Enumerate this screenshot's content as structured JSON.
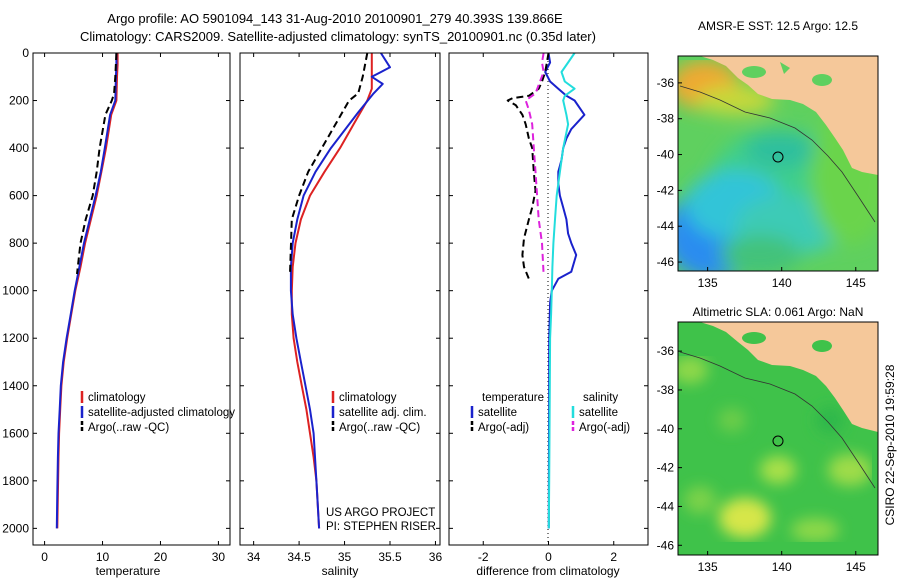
{
  "header": {
    "line1": "Argo profile: AO 5901094_143 31-Aug-2010 20100901_279 40.393S 139.866E",
    "line2": "Climatology: CARS2009. Satellite-adjusted climatology: synTS_20100901.nc (0.35d later)"
  },
  "side_text": "CSIRO 22-Sep-2010 19:59:28",
  "credits": [
    "US ARGO PROJECT",
    "PI: STEPHEN RISER"
  ],
  "colors": {
    "climatology": "#dd2222",
    "satellite": "#1a22cc",
    "argo": "#000000",
    "argo_adj": "#dd22dd",
    "satellite_diff": "#22dddd",
    "land": "#f5c89a"
  },
  "chart_data": [
    {
      "id": "temperature",
      "type": "line",
      "xlabel": "temperature",
      "xlim": [
        -2,
        32
      ],
      "xticks": [
        0,
        10,
        20,
        30
      ],
      "ylim": [
        0,
        2070
      ],
      "yticks": [
        0,
        200,
        400,
        600,
        800,
        1000,
        1200,
        1400,
        1600,
        1800,
        2000
      ],
      "legend": [
        "climatology",
        "satellite-adjusted climatology",
        "Argo(..raw -QC)"
      ],
      "series": [
        {
          "name": "climatology",
          "style": "solid",
          "color": "#dd2222",
          "x": [
            12.6,
            12.6,
            12.5,
            12.4,
            11.5,
            10.6,
            9.8,
            9.0,
            8.0,
            7.0,
            6.2,
            5.3,
            4.6,
            3.9,
            3.3,
            2.9,
            2.7,
            2.5,
            2.4,
            2.3,
            2.2
          ],
          "y": [
            0,
            50,
            100,
            200,
            260,
            400,
            500,
            600,
            700,
            800,
            900,
            1000,
            1100,
            1200,
            1300,
            1400,
            1500,
            1600,
            1700,
            1850,
            2000
          ]
        },
        {
          "name": "satellite-adjusted climatology",
          "style": "solid",
          "color": "#1a22cc",
          "x": [
            12.4,
            12.4,
            12.3,
            12.2,
            11.3,
            10.4,
            9.7,
            8.8,
            7.8,
            6.8,
            6.0,
            5.2,
            4.5,
            3.8,
            3.2,
            2.8,
            2.6,
            2.4,
            2.3,
            2.2,
            2.1
          ],
          "y": [
            0,
            50,
            100,
            200,
            260,
            400,
            500,
            600,
            700,
            800,
            900,
            1000,
            1100,
            1200,
            1300,
            1400,
            1500,
            1600,
            1700,
            1850,
            2000
          ]
        },
        {
          "name": "Argo(..raw -QC)",
          "style": "dashed",
          "color": "#000000",
          "x": [
            12.4,
            12.2,
            12.0,
            11.6,
            10.5,
            9.5,
            9.0,
            8.3,
            7.1,
            6.2,
            5.6
          ],
          "y": [
            0,
            100,
            170,
            200,
            260,
            400,
            500,
            600,
            700,
            800,
            930
          ]
        }
      ]
    },
    {
      "id": "salinity",
      "type": "line",
      "xlabel": "salinity",
      "xlim": [
        33.85,
        36.05
      ],
      "xticks": [
        34,
        34.5,
        35,
        35.5,
        36
      ],
      "ylim": [
        0,
        2070
      ],
      "legend": [
        "climatology",
        "satellite adj. clim.",
        "Argo(..raw -QC)"
      ],
      "series": [
        {
          "name": "climatology",
          "style": "solid",
          "color": "#dd2222",
          "x": [
            35.3,
            35.3,
            35.25,
            35.1,
            34.95,
            34.78,
            34.62,
            34.52,
            34.46,
            34.43,
            34.42,
            34.42,
            34.44,
            34.48,
            34.53,
            34.58,
            34.62,
            34.66,
            34.69,
            34.72
          ],
          "y": [
            0,
            150,
            200,
            300,
            400,
            500,
            600,
            700,
            800,
            900,
            1000,
            1100,
            1200,
            1300,
            1400,
            1500,
            1600,
            1700,
            1800,
            2000
          ]
        },
        {
          "name": "satellite adj. clim.",
          "style": "solid",
          "color": "#1a22cc",
          "x": [
            35.4,
            35.5,
            35.3,
            35.42,
            35.32,
            35.15,
            34.85,
            34.68,
            34.55,
            34.48,
            34.43,
            34.41,
            34.41,
            34.43,
            34.47,
            34.52,
            34.57,
            34.62,
            34.66,
            34.69,
            34.72
          ],
          "y": [
            0,
            60,
            100,
            130,
            170,
            250,
            400,
            500,
            600,
            700,
            800,
            900,
            1000,
            1100,
            1200,
            1300,
            1400,
            1500,
            1600,
            1800,
            2000
          ]
        },
        {
          "name": "Argo(..raw -QC)",
          "style": "dashed",
          "color": "#000000",
          "x": [
            35.25,
            35.2,
            35.15,
            35.05,
            34.9,
            34.75,
            34.6,
            34.5,
            34.42,
            34.4
          ],
          "y": [
            0,
            100,
            170,
            200,
            300,
            400,
            500,
            600,
            700,
            930
          ]
        }
      ]
    },
    {
      "id": "difference",
      "type": "line",
      "xlabel": "difference from climatology",
      "xlim": [
        -3.05,
        3.05
      ],
      "xticks": [
        -2,
        0,
        2
      ],
      "ylim": [
        0,
        2070
      ],
      "legend": [
        "temperature",
        "satellite",
        "Argo(-adj)",
        "salinity",
        "satellite",
        "Argo(-adj)"
      ],
      "series": [
        {
          "name": "temperature satellite",
          "style": "solid",
          "color": "#1a22cc",
          "x": [
            0,
            0.05,
            -0.1,
            0.05,
            0.3,
            0.55,
            0.8,
            1.1,
            0.7,
            0.55,
            0.45,
            0.4,
            0.3,
            0.3,
            0.35,
            0.45,
            0.55,
            0.6,
            0.7,
            0.85,
            0.7,
            0.3,
            0.1,
            0.05,
            0.02,
            0.01
          ],
          "y": [
            0,
            40,
            80,
            120,
            150,
            180,
            200,
            260,
            320,
            360,
            400,
            450,
            500,
            550,
            600,
            650,
            700,
            760,
            800,
            850,
            920,
            950,
            1000,
            1050,
            1200,
            2000
          ]
        },
        {
          "name": "temperature Argo(-adj)",
          "style": "dashed",
          "color": "#000000",
          "x": [
            0,
            -0.05,
            -0.1,
            -0.2,
            -0.3,
            -0.6,
            -1.1,
            -1.25,
            -1.0,
            -0.9,
            -0.8,
            -0.7,
            -0.6,
            -0.5,
            -0.45,
            -0.4,
            -0.5,
            -0.6,
            -0.75,
            -0.8,
            -0.75,
            -0.6
          ],
          "y": [
            0,
            40,
            80,
            120,
            150,
            180,
            190,
            200,
            220,
            240,
            260,
            300,
            360,
            400,
            500,
            580,
            650,
            700,
            780,
            850,
            900,
            950
          ]
        },
        {
          "name": "salinity satellite",
          "style": "solid",
          "color": "#22dddd",
          "x": [
            0.8,
            0.6,
            0.4,
            0.5,
            0.8,
            0.5,
            0.45,
            0.55,
            0.6,
            0.45,
            0.35,
            0.25,
            0.2,
            0.15,
            0.12,
            0.1,
            0.08,
            0.05,
            0.04,
            0.03,
            0.02,
            0.01
          ],
          "y": [
            0,
            40,
            80,
            120,
            150,
            180,
            200,
            260,
            300,
            400,
            500,
            600,
            700,
            800,
            900,
            1000,
            1100,
            1200,
            1400,
            1600,
            1800,
            2000
          ]
        },
        {
          "name": "salinity Argo(-adj)",
          "style": "dashed",
          "color": "#dd22dd",
          "x": [
            -0.15,
            -0.2,
            -0.15,
            -0.4,
            -0.7,
            -0.6,
            -0.5,
            -0.45,
            -0.4,
            -0.35,
            -0.3,
            -0.2,
            -0.15
          ],
          "y": [
            0,
            40,
            80,
            170,
            200,
            240,
            300,
            400,
            500,
            600,
            700,
            800,
            930
          ]
        }
      ]
    },
    {
      "id": "sst_map",
      "type": "heatmap",
      "title": "AMSR-E SST: 12.5 Argo: 12.5",
      "xlim": [
        133,
        146.5
      ],
      "xticks": [
        135,
        140,
        145
      ],
      "ylim": [
        -46.5,
        -34.5
      ],
      "yticks": [
        -36,
        -38,
        -40,
        -42,
        -44,
        -46
      ],
      "marker": {
        "lon": 139.866,
        "lat": -40.393
      }
    },
    {
      "id": "sla_map",
      "type": "heatmap",
      "title": "Altimetric SLA: 0.061 Argo: NaN",
      "xlim": [
        133,
        146.5
      ],
      "xticks": [
        135,
        140,
        145
      ],
      "ylim": [
        -46.5,
        -34.5
      ],
      "yticks": [
        -36,
        -38,
        -40,
        -42,
        -44,
        -46
      ],
      "marker": {
        "lon": 139.866,
        "lat": -40.393
      }
    }
  ]
}
